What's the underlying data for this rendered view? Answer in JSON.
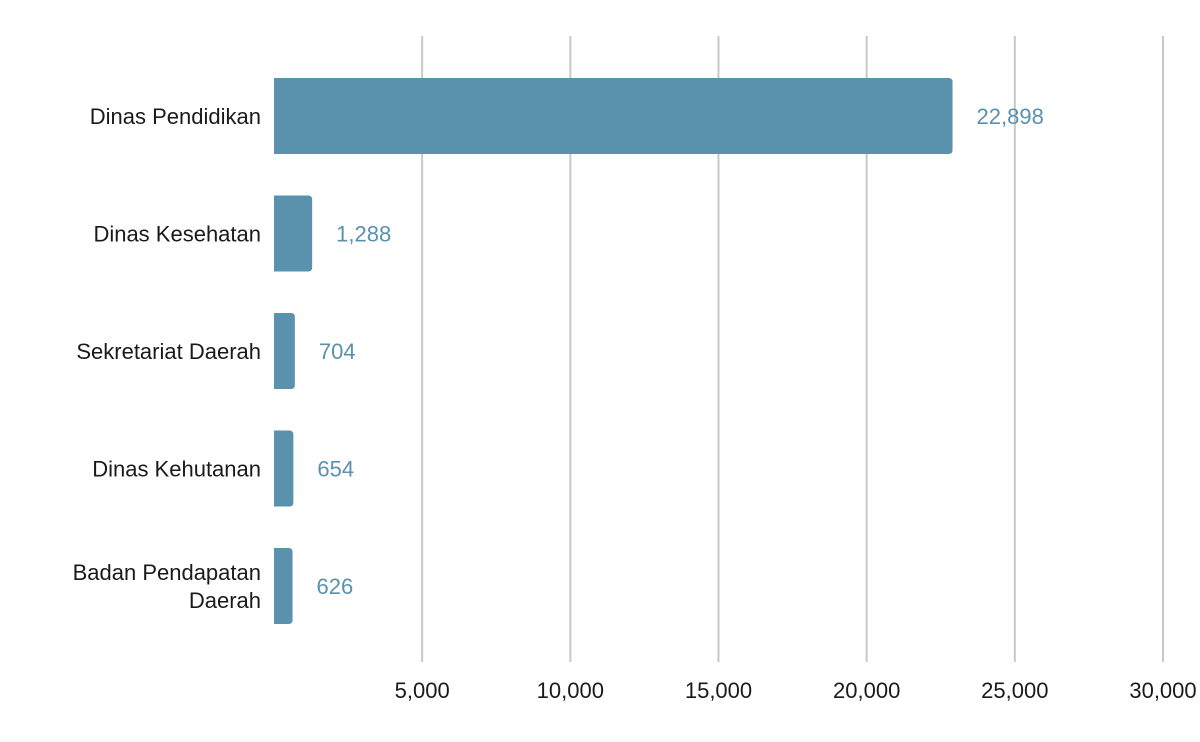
{
  "chart_data": {
    "type": "bar",
    "orientation": "horizontal",
    "categories": [
      "Dinas Pendidikan",
      "Dinas Kesehatan",
      "Sekretariat Daerah",
      "Dinas Kehutanan",
      "Badan Pendapatan Daerah"
    ],
    "category_lines": [
      [
        "Dinas Pendidikan"
      ],
      [
        "Dinas Kesehatan"
      ],
      [
        "Sekretariat Daerah"
      ],
      [
        "Dinas Kehutanan"
      ],
      [
        "Badan Pendapatan",
        "Daerah"
      ]
    ],
    "values": [
      22898,
      1288,
      704,
      654,
      626
    ],
    "value_labels": [
      "22,898",
      "1,288",
      "704",
      "654",
      "626"
    ],
    "xlim": [
      0,
      30000
    ],
    "xticks": [
      5000,
      10000,
      15000,
      20000,
      25000,
      30000
    ],
    "xtick_labels": [
      "5,000",
      "10,000",
      "15,000",
      "20,000",
      "25,000",
      "30,000"
    ],
    "grid": "vertical",
    "legend": "none",
    "colors": {
      "bar": "#5a91ad",
      "value_label": "#5a91ad",
      "grid": "#c8c8c8",
      "text": "#1a1a1a"
    }
  }
}
